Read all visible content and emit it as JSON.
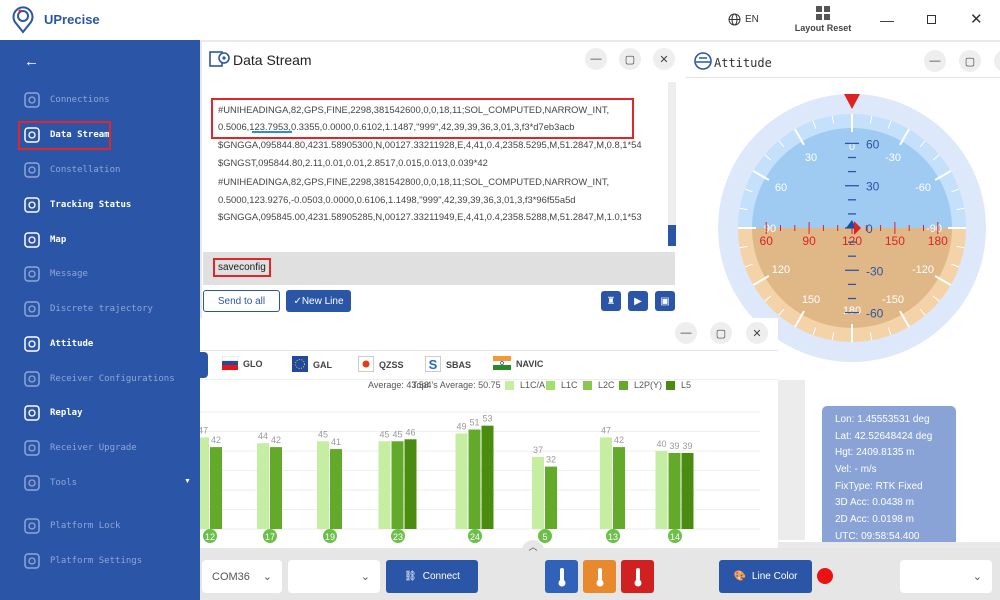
{
  "app": {
    "title": "UPrecise",
    "language": "EN",
    "layout_reset": "Layout Reset"
  },
  "sidebar": {
    "items": [
      {
        "label": "Connections",
        "active": false
      },
      {
        "label": "Data Stream",
        "active": true
      },
      {
        "label": "Constellation",
        "active": false
      },
      {
        "label": "Tracking Status",
        "active": true
      },
      {
        "label": "Map",
        "active": true
      },
      {
        "label": "Message",
        "active": false
      },
      {
        "label": "Discrete trajectory",
        "active": false
      },
      {
        "label": "Attitude",
        "active": true
      },
      {
        "label": "Receiver Configurations",
        "active": false
      },
      {
        "label": "Replay",
        "active": true
      },
      {
        "label": "Receiver Upgrade",
        "active": false
      },
      {
        "label": "Tools",
        "active": false
      },
      {
        "label": "Platform Lock",
        "active": false
      },
      {
        "label": "Platform Settings",
        "active": false
      }
    ]
  },
  "data_stream": {
    "title": "Data Stream",
    "lines": [
      "#UNIHEADINGA,82,GPS,FINE,2298,381542600,0,0,18,11;SOL_COMPUTED,NARROW_INT,",
      "0.5006,123.7953,0.3355,0.0000,0.6102,1.1487,\"999\",42,39,39,36,3,01,3,f3*d7eb3acb",
      "$GNGGA,095844.80,4231.58905300,N,00127.33211928,E,4,41,0.4,2358.5295,M,51.2847,M,0.8,1*54",
      "$GNGST,095844.80,2.11,0.01,0.01,2.8517,0.015,0.013,0.039*42",
      "#UNIHEADINGA,82,GPS,FINE,2298,381542800,0,0,18,11;SOL_COMPUTED,NARROW_INT,",
      "0.5000,123.9276,-0.0503,0.0000,0.6106,1.1498,\"999\",42,39,39,36,3,01,3,f3*96f55a5d",
      "$GNGGA,095845.00,4231.58905285,N,00127.33211949,E,4,41,0.4,2358.5288,M,51.2847,M,1.0,1*53"
    ],
    "command": "saveconfig",
    "send_all": "Send to all",
    "new_line": "✓New Line"
  },
  "attitude": {
    "title": "Attitude",
    "heading": 120,
    "pitch": 0,
    "roll": 0,
    "heading_labels": [
      60,
      90,
      120,
      150,
      180
    ],
    "pitch_labels": [
      60,
      30,
      0,
      -30,
      -60
    ],
    "roll_labels": [
      0,
      30,
      60,
      90,
      120,
      150,
      180,
      -150,
      -120,
      -90,
      -60,
      -30
    ]
  },
  "info": {
    "lines": [
      "Lon: 1.45553531 deg",
      "Lat: 42.52648424 deg",
      "Hgt: 2409.8135 m",
      "Vel: - m/s",
      "FixType: RTK Fixed",
      "3D Acc:  0.0438 m",
      "2D Acc:  0.0198 m",
      "UTC: 09:58:54.400"
    ]
  },
  "constellation_tabs": [
    "GLO",
    "GAL",
    "QZSS",
    "SBAS",
    "NAVIC"
  ],
  "stats": {
    "average": "Average: 43.58",
    "top4": "Top4's Average: 50.75"
  },
  "chart_data": {
    "type": "bar",
    "legend": [
      {
        "name": "L1C/A",
        "color": "#c6eea3"
      },
      {
        "name": "L1C",
        "color": "#a3df6c"
      },
      {
        "name": "L2C",
        "color": "#88c84f"
      },
      {
        "name": "L2P(Y)",
        "color": "#63aa2a"
      },
      {
        "name": "L5",
        "color": "#4a8c10"
      }
    ],
    "categories": [
      "12",
      "17",
      "19",
      "23",
      "24",
      "5",
      "13",
      "14"
    ],
    "series": [
      {
        "name": "L1C/A",
        "color": "#c6eea3",
        "values": [
          47,
          44,
          45,
          45,
          49,
          37,
          47,
          40
        ]
      },
      {
        "name": "L2P(Y)",
        "color": "#63aa2a",
        "values": [
          42,
          42,
          41,
          45,
          51,
          32,
          42,
          39
        ]
      },
      {
        "name": "L5",
        "color": "#4a8c10",
        "values": [
          null,
          null,
          null,
          46,
          53,
          null,
          null,
          39
        ]
      }
    ],
    "ylim": [
      0,
      60
    ],
    "grid": true,
    "legend_position": "top-right"
  },
  "bottom": {
    "port": "COM36",
    "connect": "Connect",
    "line_color": "Line Color",
    "line_color_value": "#ee1111",
    "temp_colors": [
      "#2f62b8",
      "#e8892d",
      "#d0201f"
    ]
  }
}
